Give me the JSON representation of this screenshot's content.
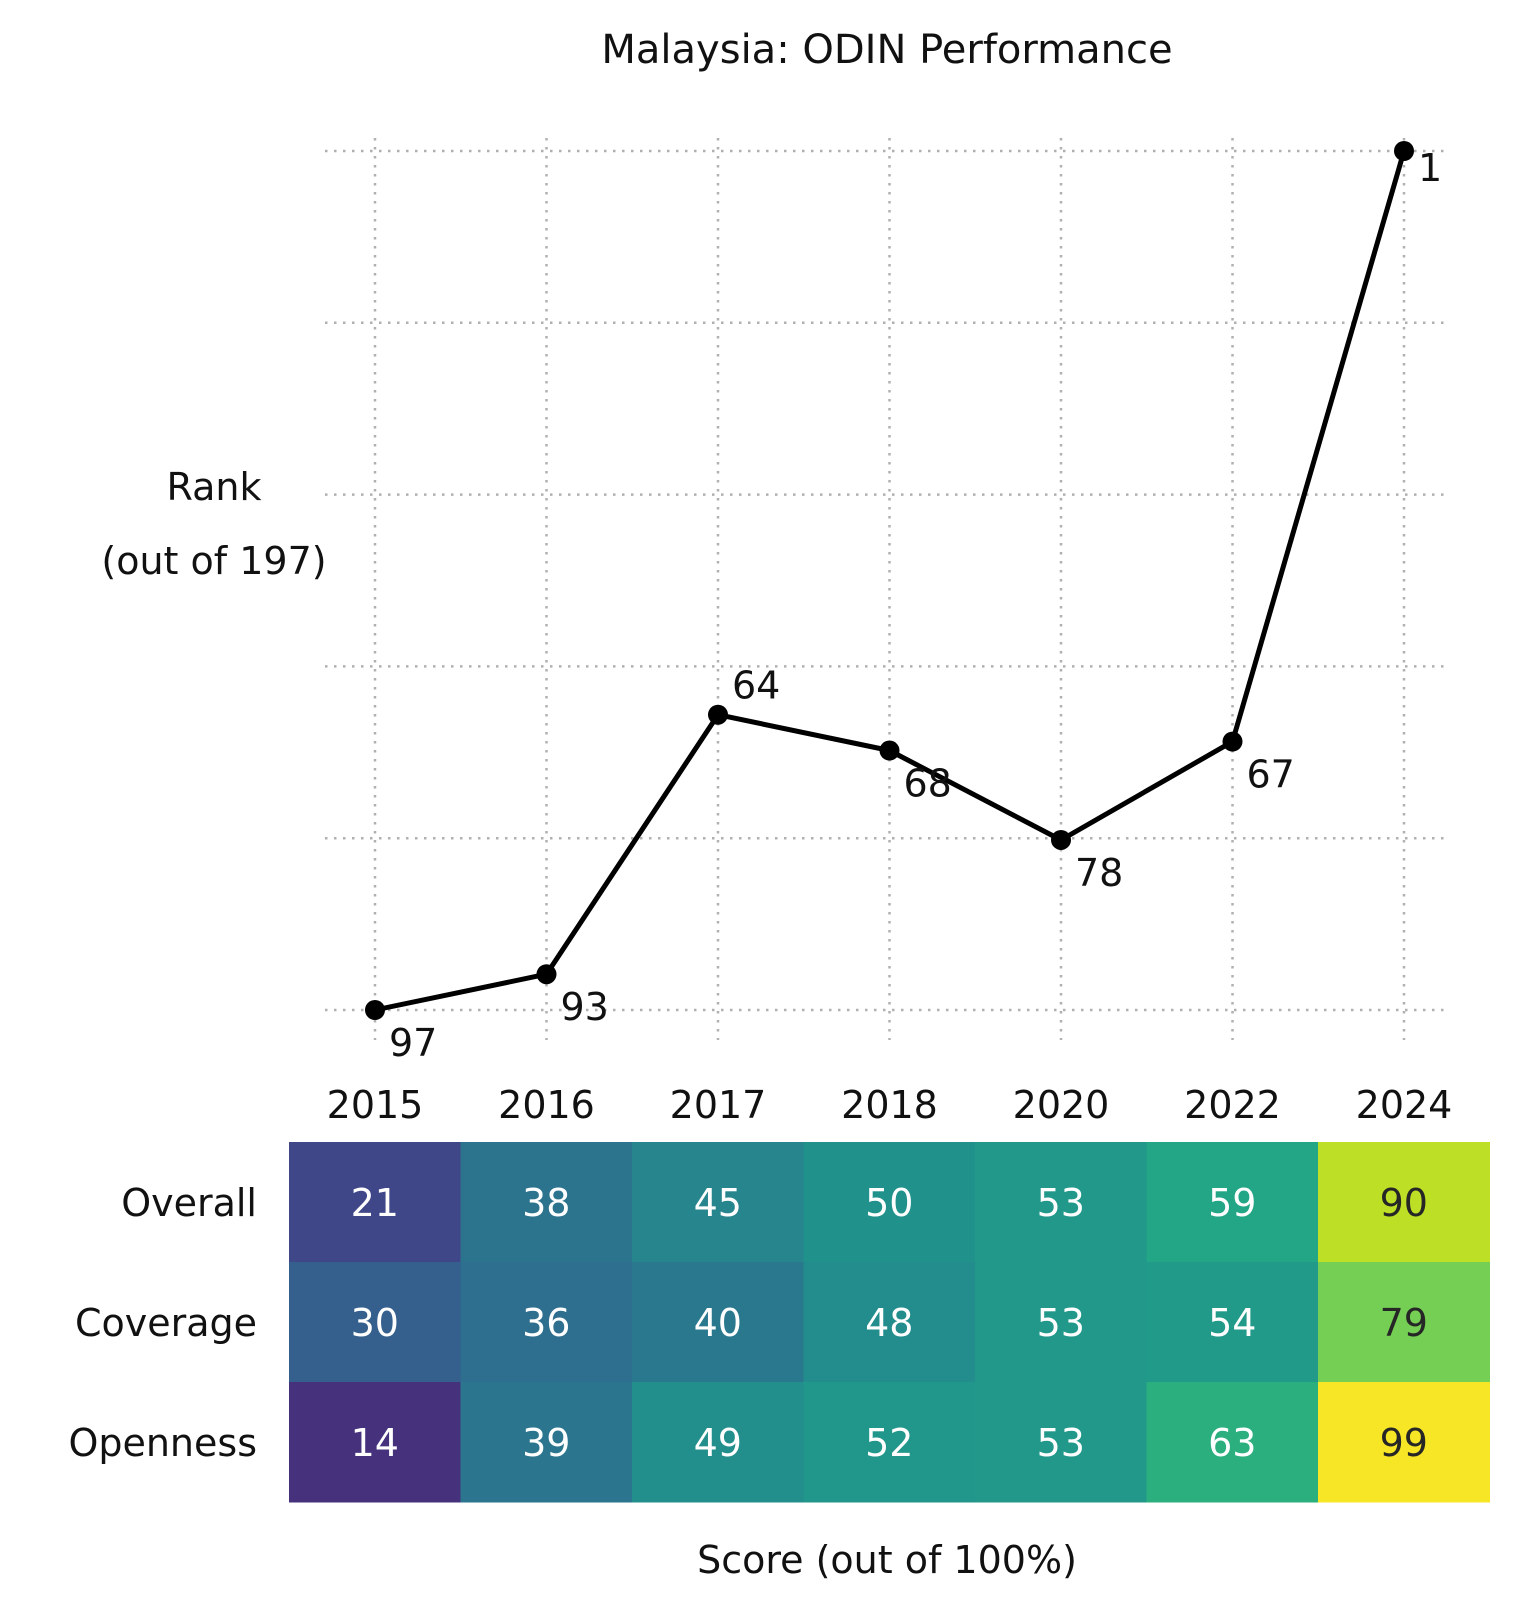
{
  "chart_data": [
    {
      "type": "line",
      "title": "Malaysia: ODIN Performance",
      "ylabel": "Rank\n(out of 197)",
      "y_inverted": true,
      "grid": true,
      "x": [
        "2015",
        "2016",
        "2017",
        "2018",
        "2020",
        "2022",
        "2024"
      ],
      "series": [
        {
          "values": [
            97,
            93,
            64,
            68,
            78,
            67,
            1
          ]
        }
      ]
    },
    {
      "type": "heatmap",
      "xlabel": "Score (out of 100%)",
      "columns": [
        "2015",
        "2016",
        "2017",
        "2018",
        "2020",
        "2022",
        "2024"
      ],
      "rows": [
        "Overall",
        "Coverage",
        "Openness"
      ],
      "values": [
        [
          21,
          38,
          45,
          50,
          53,
          59,
          90
        ],
        [
          30,
          36,
          40,
          48,
          53,
          54,
          79
        ],
        [
          14,
          39,
          49,
          52,
          53,
          63,
          99
        ]
      ],
      "range": [
        0,
        100
      ],
      "colormap": "viridis"
    }
  ]
}
